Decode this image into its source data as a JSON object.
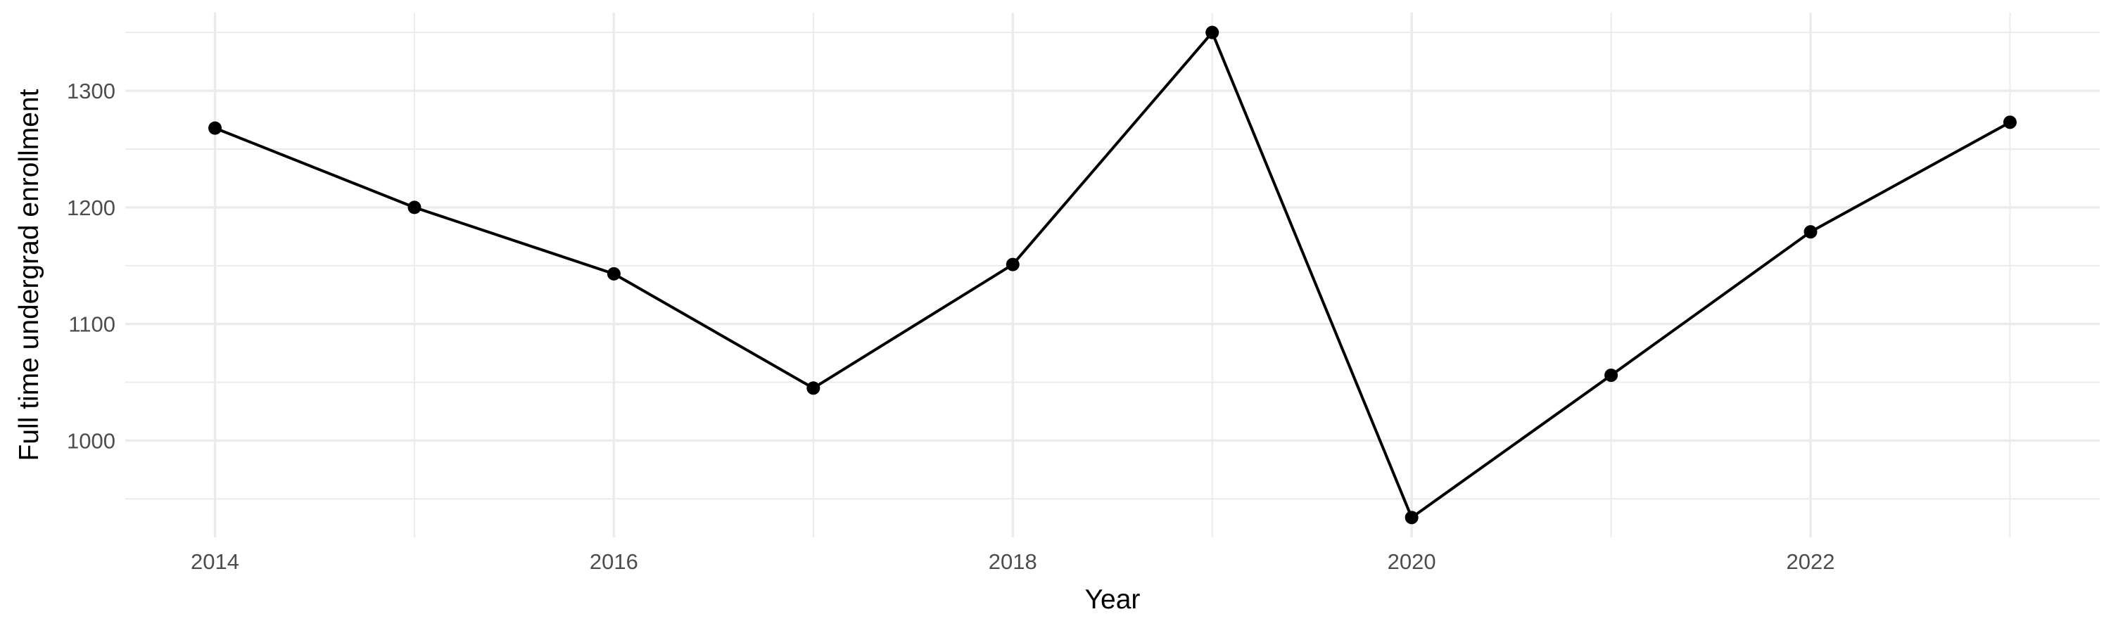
{
  "chart_data": {
    "type": "line",
    "title": "",
    "xlabel": "Year",
    "ylabel": "Full time undergrad enrollment",
    "x": [
      2014,
      2015,
      2016,
      2017,
      2018,
      2019,
      2020,
      2021,
      2022,
      2023
    ],
    "series": [
      {
        "values": [
          1268,
          1200,
          1143,
          1045,
          1151,
          1350,
          934,
          1056,
          1179,
          1273
        ],
        "color": "#000000",
        "markers": true
      }
    ],
    "xlim": [
      2013.55,
      2023.45
    ],
    "ylim": [
      917,
      1367
    ],
    "x_ticks": [
      2014,
      2016,
      2018,
      2020,
      2022
    ],
    "x_tick_labels": [
      "2014",
      "2016",
      "2018",
      "2020",
      "2022"
    ],
    "y_ticks": [
      1000,
      1100,
      1200,
      1300
    ],
    "y_tick_labels": [
      "1000",
      "1100",
      "1200",
      "1300"
    ],
    "grid": true,
    "legend": "none",
    "theme": "minimal"
  }
}
